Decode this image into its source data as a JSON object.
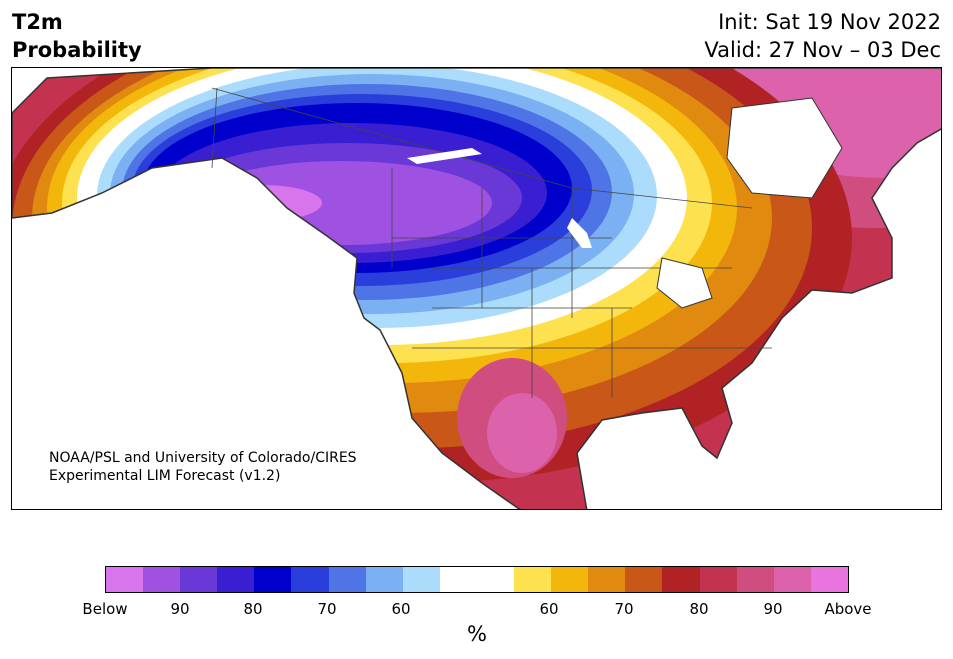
{
  "title": {
    "left_line1": "T2m",
    "left_line2": "Probability",
    "right_line1": "Init: Sat 19 Nov 2022",
    "right_line2": "Valid: 27 Nov – 03 Dec"
  },
  "credit": {
    "line1": "NOAA/PSL and University of Colorado/CIRES",
    "line2": "Experimental LIM Forecast (v1.2)"
  },
  "colorbar": {
    "colors": [
      "#d874ec",
      "#9f52e2",
      "#6b38d8",
      "#3a1fd2",
      "#0000cd",
      "#2a3edb",
      "#4f74e6",
      "#7bb0f2",
      "#acdcfc",
      "#ffffff",
      "#ffffff",
      "#fee14e",
      "#f3b70b",
      "#e18a10",
      "#c85718",
      "#b02224",
      "#c3334f",
      "#d04d80",
      "#dc62ac",
      "#e874df"
    ],
    "tick_labels": [
      "Below",
      "90",
      "80",
      "70",
      "60",
      "60",
      "70",
      "80",
      "90",
      "Above"
    ],
    "units": "%"
  }
}
